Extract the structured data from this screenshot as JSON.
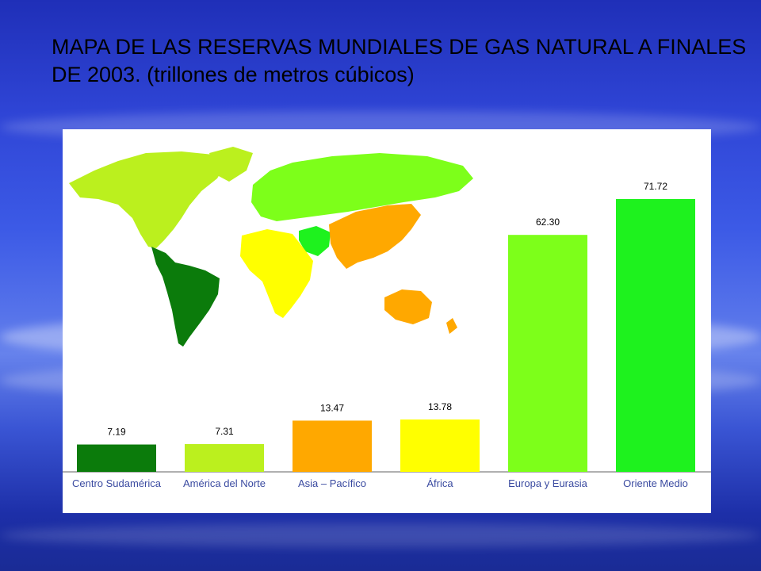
{
  "slide": {
    "title": "MAPA DE LAS RESERVAS MUNDIALES DE GAS NATURAL A FINALES DE 2003. (trillones de metros cúbicos)"
  },
  "colors": {
    "centro_sudamerica": "#0b7b0b",
    "america_norte": "#bbf01e",
    "asia_pacifico": "#ffa800",
    "africa": "#ffff00",
    "europa_eurasia": "#7dff1a",
    "oriente_medio": "#1ef21e"
  },
  "chart_data": {
    "type": "bar",
    "title": "MAPA DE LAS RESERVAS MUNDIALES DE GAS NATURAL A FINALES DE 2003. (trillones de metros cúbicos)",
    "categories": [
      "Centro Sudamérica",
      "América del Norte",
      "Asia – Pacífico",
      "África",
      "Europa y Eurasia",
      "Oriente Medio"
    ],
    "values": [
      7.19,
      7.31,
      13.47,
      13.78,
      62.3,
      71.72
    ],
    "value_labels": [
      "7.19",
      "7.31",
      "13.47",
      "13.78",
      "62.30",
      "71.72"
    ],
    "ylim": [
      0,
      75
    ],
    "grid": false,
    "legend": "world map inset colored by region"
  }
}
